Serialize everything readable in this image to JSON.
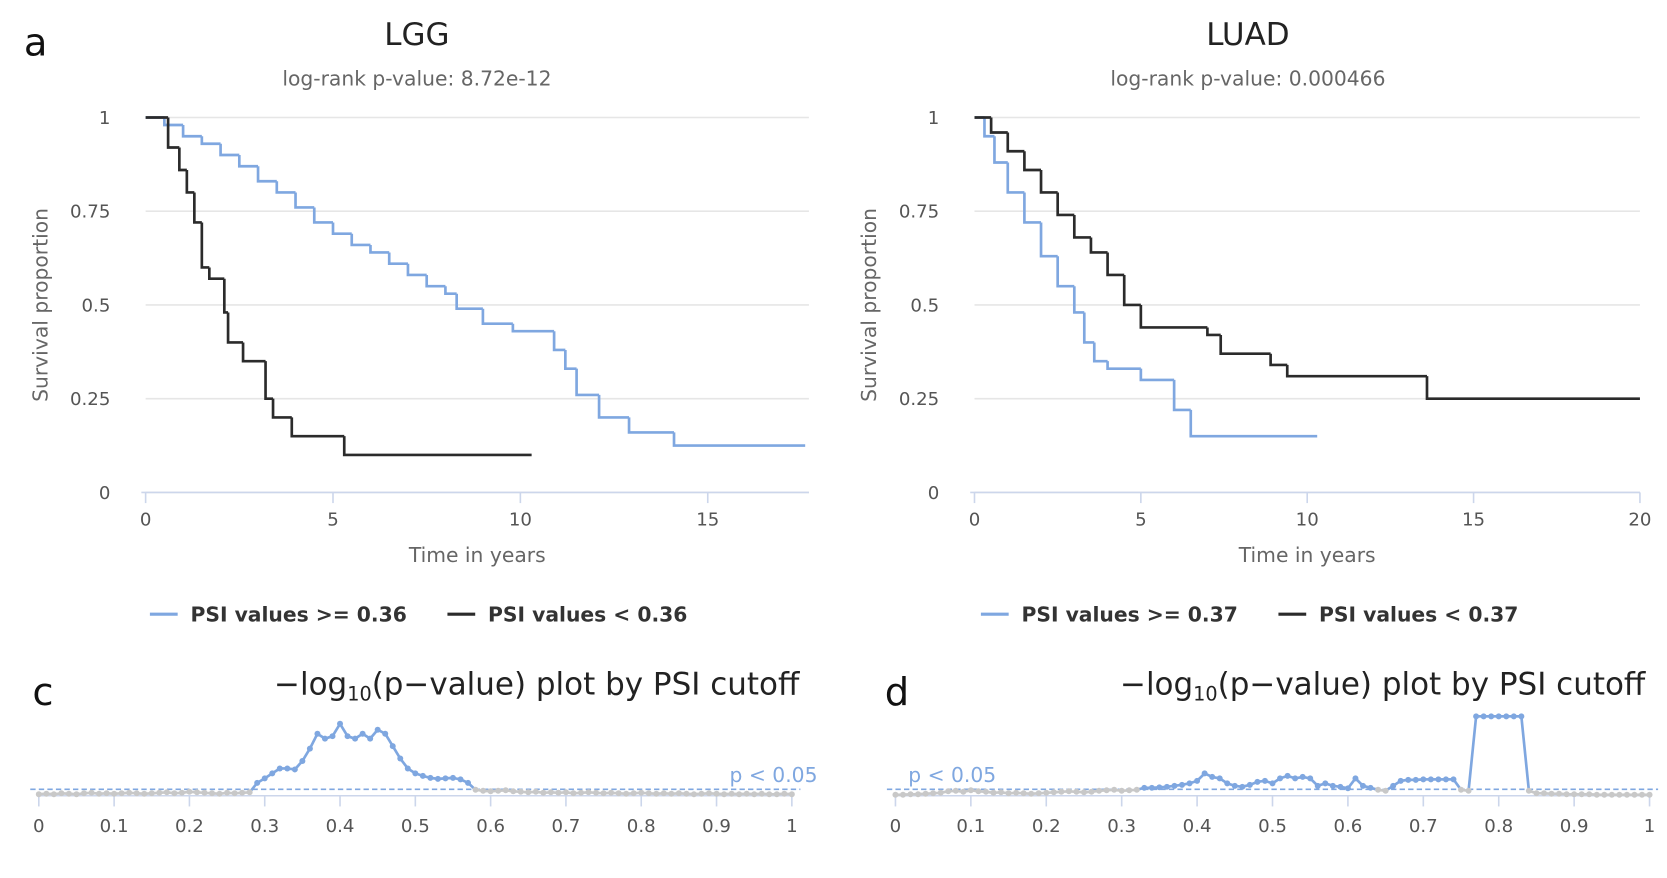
{
  "chart_data": [
    {
      "type": "line",
      "step": true,
      "panel_label": "a",
      "title": "LGG",
      "subtitle": "log-rank p-value: 8.72e-12",
      "x_label": "Time in years",
      "y_label": "Survival proportion",
      "xlim": [
        0,
        17.7
      ],
      "xticks": [
        0,
        5,
        10,
        15
      ],
      "ylim": [
        0,
        1
      ],
      "yticks": [
        0,
        0.25,
        0.5,
        0.75,
        1
      ],
      "grid": true,
      "legend": "bottom",
      "series": [
        {
          "name": "PSI values >= 0.36",
          "color": "#7fa7e0",
          "x": [
            0,
            0.5,
            1,
            1.5,
            2,
            2.5,
            3,
            3.5,
            4,
            4.5,
            5,
            5.5,
            6,
            6.5,
            7,
            7.5,
            8,
            8.3,
            9,
            9.8,
            10.9,
            11.2,
            11.5,
            12.1,
            12.9,
            14.1,
            17.6
          ],
          "values": [
            1,
            0.98,
            0.95,
            0.93,
            0.9,
            0.87,
            0.83,
            0.8,
            0.76,
            0.72,
            0.69,
            0.66,
            0.64,
            0.61,
            0.58,
            0.55,
            0.53,
            0.49,
            0.45,
            0.43,
            0.38,
            0.33,
            0.26,
            0.2,
            0.16,
            0.125,
            0.125
          ]
        },
        {
          "name": "PSI values < 0.36",
          "color": "#2b2b2b",
          "x": [
            0,
            0.6,
            0.9,
            1.1,
            1.3,
            1.5,
            1.7,
            2.1,
            2.2,
            2.6,
            3.2,
            3.4,
            3.9,
            5.3,
            10.3
          ],
          "values": [
            1,
            0.92,
            0.86,
            0.8,
            0.72,
            0.6,
            0.57,
            0.48,
            0.4,
            0.35,
            0.25,
            0.2,
            0.15,
            0.1,
            0.1
          ]
        }
      ]
    },
    {
      "type": "line",
      "step": true,
      "title": "LUAD",
      "subtitle": "log-rank p-value: 0.000466",
      "x_label": "Time in years",
      "y_label": "Survival proportion",
      "xlim": [
        0,
        20
      ],
      "xticks": [
        0,
        5,
        10,
        15,
        20
      ],
      "ylim": [
        0,
        1
      ],
      "yticks": [
        0,
        0.25,
        0.5,
        0.75,
        1
      ],
      "grid": true,
      "legend": "bottom",
      "series": [
        {
          "name": "PSI values >= 0.37",
          "color": "#7fa7e0",
          "x": [
            0,
            0.3,
            0.6,
            1,
            1.5,
            2,
            2.5,
            3,
            3.3,
            3.6,
            4,
            5,
            6,
            6.5,
            10.3
          ],
          "values": [
            1,
            0.95,
            0.88,
            0.8,
            0.72,
            0.63,
            0.55,
            0.48,
            0.4,
            0.35,
            0.33,
            0.3,
            0.22,
            0.15,
            0.15
          ]
        },
        {
          "name": "PSI values < 0.37",
          "color": "#2b2b2b",
          "x": [
            0,
            0.5,
            1,
            1.5,
            2,
            2.5,
            3,
            3.5,
            4,
            4.5,
            5,
            7,
            7.4,
            8.9,
            9.4,
            13.6,
            20
          ],
          "values": [
            1,
            0.96,
            0.91,
            0.86,
            0.8,
            0.74,
            0.68,
            0.64,
            0.58,
            0.5,
            0.44,
            0.42,
            0.37,
            0.34,
            0.31,
            0.25,
            0.25
          ]
        }
      ]
    },
    {
      "type": "line",
      "markers": true,
      "panel_label": "c",
      "title": [
        "−log",
        "10",
        "(p−value) plot by PSI cutoff"
      ],
      "xlim": [
        0,
        1
      ],
      "xticks": [
        0,
        0.1,
        0.2,
        0.3,
        0.4,
        0.5,
        0.6,
        0.7,
        0.8,
        0.9,
        1
      ],
      "ylim": [
        0,
        17
      ],
      "threshold": 1.301,
      "threshold_label": "p < 0.05",
      "threshold_label_side": "right",
      "color": "#7fa7e0",
      "below_color": "#c8c8c8",
      "x": [
        0,
        0.01,
        0.02,
        0.03,
        0.04,
        0.05,
        0.06,
        0.07,
        0.08,
        0.09,
        0.1,
        0.11,
        0.12,
        0.13,
        0.14,
        0.15,
        0.16,
        0.17,
        0.18,
        0.19,
        0.2,
        0.21,
        0.22,
        0.23,
        0.24,
        0.25,
        0.26,
        0.27,
        0.28,
        0.29,
        0.3,
        0.31,
        0.32,
        0.33,
        0.34,
        0.35,
        0.36,
        0.37,
        0.38,
        0.39,
        0.4,
        0.41,
        0.42,
        0.43,
        0.44,
        0.45,
        0.46,
        0.47,
        0.48,
        0.49,
        0.5,
        0.51,
        0.52,
        0.53,
        0.54,
        0.55,
        0.56,
        0.57,
        0.58,
        0.59,
        0.6,
        0.61,
        0.62,
        0.63,
        0.64,
        0.65,
        0.66,
        0.67,
        0.68,
        0.69,
        0.7,
        0.71,
        0.72,
        0.73,
        0.74,
        0.75,
        0.76,
        0.77,
        0.78,
        0.79,
        0.8,
        0.81,
        0.82,
        0.83,
        0.84,
        0.85,
        0.86,
        0.87,
        0.88,
        0.89,
        0.9,
        0.91,
        0.92,
        0.93,
        0.94,
        0.95,
        0.96,
        0.97,
        0.98,
        0.99,
        1
      ],
      "values": [
        0.3,
        0.4,
        0.3,
        0.5,
        0.4,
        0.3,
        0.5,
        0.6,
        0.4,
        0.5,
        0.4,
        0.5,
        0.6,
        0.5,
        0.4,
        0.5,
        0.6,
        0.7,
        0.5,
        0.6,
        0.8,
        0.7,
        0.6,
        0.5,
        0.4,
        0.6,
        0.5,
        0.6,
        0.7,
        2.6,
        3.5,
        4.5,
        5.5,
        5.5,
        5.3,
        7,
        9.5,
        12.5,
        11.5,
        12,
        14.5,
        12,
        11.5,
        12.5,
        11.5,
        13.3,
        12.5,
        10,
        7.5,
        5.5,
        4.5,
        4,
        3.6,
        3.4,
        3.5,
        3.6,
        3.3,
        2.6,
        1.2,
        1.0,
        0.9,
        1.0,
        1.1,
        0.9,
        0.8,
        0.7,
        0.8,
        0.6,
        0.7,
        0.6,
        0.7,
        0.5,
        0.6,
        0.7,
        0.6,
        0.5,
        0.6,
        0.5,
        0.4,
        0.5,
        0.6,
        0.5,
        0.4,
        0.5,
        0.4,
        0.5,
        0.4,
        0.3,
        0.4,
        0.5,
        0.4,
        0.3,
        0.4,
        0.3,
        0.4,
        0.3,
        0.4,
        0.3,
        0.3,
        0.4,
        0.3
      ]
    },
    {
      "type": "line",
      "markers": true,
      "panel_label": "d",
      "title": [
        "−log",
        "10",
        "(p−value) plot by PSI cutoff"
      ],
      "xlim": [
        0,
        1
      ],
      "xticks": [
        0,
        0.1,
        0.2,
        0.3,
        0.4,
        0.5,
        0.6,
        0.7,
        0.8,
        0.9,
        1
      ],
      "ylim": [
        0,
        17
      ],
      "threshold": 1.301,
      "threshold_label": "p < 0.05",
      "threshold_label_side": "left",
      "color": "#7fa7e0",
      "below_color": "#c8c8c8",
      "x": [
        0,
        0.01,
        0.02,
        0.03,
        0.04,
        0.05,
        0.06,
        0.07,
        0.08,
        0.09,
        0.1,
        0.11,
        0.12,
        0.13,
        0.14,
        0.15,
        0.16,
        0.17,
        0.18,
        0.19,
        0.2,
        0.21,
        0.22,
        0.23,
        0.24,
        0.25,
        0.26,
        0.27,
        0.28,
        0.29,
        0.3,
        0.31,
        0.32,
        0.33,
        0.34,
        0.35,
        0.36,
        0.37,
        0.38,
        0.39,
        0.4,
        0.41,
        0.42,
        0.43,
        0.44,
        0.45,
        0.46,
        0.47,
        0.48,
        0.49,
        0.5,
        0.51,
        0.52,
        0.53,
        0.54,
        0.55,
        0.56,
        0.57,
        0.58,
        0.59,
        0.6,
        0.61,
        0.62,
        0.63,
        0.64,
        0.65,
        0.66,
        0.67,
        0.68,
        0.69,
        0.7,
        0.71,
        0.72,
        0.73,
        0.74,
        0.75,
        0.76,
        0.77,
        0.78,
        0.79,
        0.8,
        0.81,
        0.82,
        0.83,
        0.84,
        0.85,
        0.86,
        0.87,
        0.88,
        0.89,
        0.9,
        0.91,
        0.92,
        0.93,
        0.94,
        0.95,
        0.96,
        0.97,
        0.98,
        0.99,
        1
      ],
      "values": [
        0.2,
        0.2,
        0.3,
        0.3,
        0.4,
        0.5,
        0.6,
        0.9,
        1.0,
        0.8,
        1.1,
        0.9,
        0.8,
        0.6,
        0.7,
        0.5,
        0.6,
        0.5,
        0.4,
        0.5,
        0.6,
        0.7,
        0.8,
        0.9,
        0.8,
        0.7,
        0.8,
        1.0,
        1.1,
        1.2,
        1.0,
        1.1,
        1.2,
        1.6,
        1.6,
        1.7,
        1.8,
        2.0,
        2.2,
        2.5,
        3.0,
        4.5,
        3.8,
        3.5,
        2.5,
        2.0,
        1.8,
        2.2,
        2.8,
        3.0,
        2.5,
        3.5,
        4.0,
        3.5,
        3.8,
        3.5,
        2.0,
        2.5,
        2.0,
        1.8,
        1.5,
        3.5,
        2.0,
        1.6,
        1.2,
        1.0,
        2.0,
        3.0,
        3.2,
        3.2,
        3.3,
        3.3,
        3.3,
        3.3,
        3.3,
        1.2,
        1.0,
        16,
        16,
        16,
        16,
        16,
        16,
        16,
        1.0,
        0.5,
        0.5,
        0.4,
        0.4,
        0.3,
        0.3,
        0.3,
        0.3,
        0.2,
        0.2,
        0.2,
        0.2,
        0.2,
        0.2,
        0.2,
        0.2
      ]
    }
  ]
}
